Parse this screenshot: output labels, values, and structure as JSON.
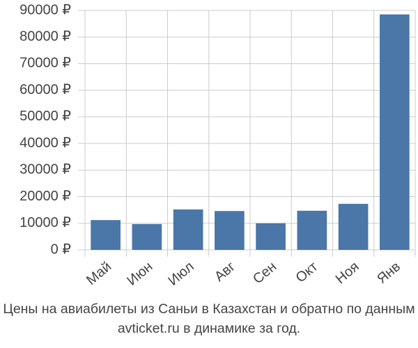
{
  "chart_data": {
    "type": "bar",
    "title": "Цены на авиабилеты из Саньи в Казахстан и обратно по данным avticket.ru в динамике за год.",
    "categories": [
      "Май",
      "Июн",
      "Июл",
      "Авг",
      "Сен",
      "Окт",
      "Ноя",
      "Янв"
    ],
    "values": [
      11200,
      9700,
      15200,
      14600,
      10000,
      14700,
      17300,
      88500
    ],
    "color": "#4a76a8",
    "ylim": [
      0,
      90000
    ],
    "yticks": [
      {
        "value": 0,
        "label": "0 ₽"
      },
      {
        "value": 10000,
        "label": "10000 ₽"
      },
      {
        "value": 20000,
        "label": "20000 ₽"
      },
      {
        "value": 30000,
        "label": "30000 ₽"
      },
      {
        "value": 40000,
        "label": "40000 ₽"
      },
      {
        "value": 50000,
        "label": "50000 ₽"
      },
      {
        "value": 60000,
        "label": "60000 ₽"
      },
      {
        "value": 70000,
        "label": "70000 ₽"
      },
      {
        "value": 80000,
        "label": "80000 ₽"
      },
      {
        "value": 90000,
        "label": "90000 ₽"
      }
    ],
    "grid": true
  }
}
